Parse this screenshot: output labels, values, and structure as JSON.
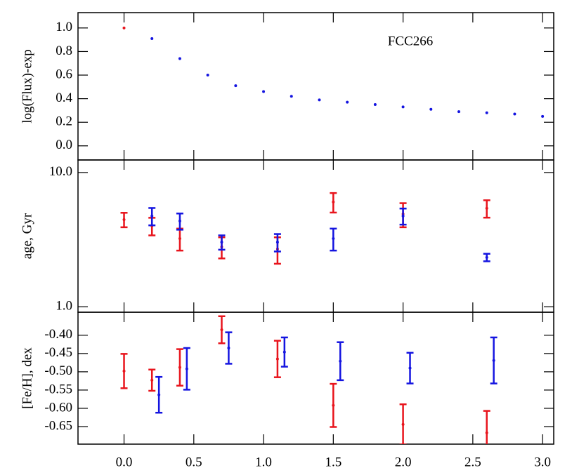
{
  "chart_data": [
    {
      "type": "scatter",
      "ylabel": "log(Flux)-exp",
      "annotation": "FCC266",
      "xlim": [
        -0.33,
        3.08
      ],
      "ylim": [
        -0.12,
        1.13
      ],
      "yticks": [
        {
          "value": 0,
          "label": "0.0"
        },
        {
          "value": 0.2,
          "label": "0.2"
        },
        {
          "value": 0.4,
          "label": "0.4"
        },
        {
          "value": 0.6,
          "label": "0.6"
        },
        {
          "value": 0.8,
          "label": "0.8"
        },
        {
          "value": 1,
          "label": "1.0"
        }
      ],
      "series": [
        {
          "color": "#e8141c",
          "x": [
            0
          ],
          "values": [
            1.0
          ]
        },
        {
          "color": "#1414e0",
          "x": [
            0.2,
            0.4,
            0.6,
            0.8,
            1.0,
            1.2,
            1.4,
            1.6,
            1.8,
            2.0,
            2.2,
            2.4,
            2.6,
            2.8,
            3.0
          ],
          "values": [
            0.91,
            0.74,
            0.6,
            0.51,
            0.46,
            0.42,
            0.39,
            0.37,
            0.35,
            0.33,
            0.31,
            0.29,
            0.28,
            0.27,
            0.25
          ]
        }
      ]
    },
    {
      "type": "errorbar",
      "ylabel": "age, Gyr",
      "log_y": true,
      "xlim": [
        -0.33,
        3.08
      ],
      "ylim": [
        0.91,
        12.4
      ],
      "yticks": [
        {
          "value": 1,
          "label": "1.0"
        },
        {
          "value": 10,
          "label": "10.0"
        }
      ],
      "series": [
        {
          "color": "#e8141c",
          "x": [
            0,
            0.2,
            0.4,
            0.7,
            1.1,
            1.5,
            2.0,
            2.6
          ],
          "values": [
            4.46,
            4.0,
            3.22,
            2.79,
            2.69,
            6.03,
            4.91,
            5.41
          ],
          "errors": [
            0.55,
            0.6,
            0.6,
            0.5,
            0.6,
            1.0,
            1.0,
            0.8
          ]
        },
        {
          "color": "#1414e0",
          "x": [
            0.2,
            0.4,
            0.7,
            1.1,
            1.5,
            2.0,
            2.6
          ],
          "values": [
            4.74,
            4.35,
            3.03,
            3.03,
            3.22,
            4.74,
            2.33
          ],
          "errors": [
            0.7,
            0.6,
            0.37,
            0.45,
            0.6,
            0.65,
            0.15
          ]
        }
      ]
    },
    {
      "type": "errorbar",
      "ylabel": "[Fe/H], dex",
      "xlim": [
        -0.33,
        3.08
      ],
      "ylim": [
        -0.698,
        -0.337
      ],
      "xticks": [
        {
          "value": 0,
          "label": "0.0"
        },
        0.5,
        {
          "value": 1,
          "label": "1.0"
        },
        1.5,
        {
          "value": 2,
          "label": "2.0"
        },
        2.5,
        {
          "value": 3,
          "label": "3.0"
        }
      ],
      "yticks": [
        {
          "value": -0.4,
          "label": "-0.40"
        },
        -0.45,
        {
          "value": -0.5,
          "label": "-0.50"
        },
        -0.55,
        {
          "value": -0.6,
          "label": "-0.60"
        },
        -0.65
      ],
      "series": [
        {
          "color": "#e8141c",
          "x": [
            0,
            0.2,
            0.4,
            0.7,
            1.1,
            1.5,
            2.0,
            2.6
          ],
          "values": [
            -0.498,
            -0.523,
            -0.488,
            -0.385,
            -0.465,
            -0.592,
            -0.644,
            -0.667
          ],
          "errors": [
            0.047,
            0.029,
            0.05,
            0.037,
            0.05,
            0.059,
            0.055,
            0.06
          ]
        },
        {
          "color": "#1414e0",
          "x": [
            0.25,
            0.45,
            0.75,
            1.15,
            1.55,
            2.05,
            2.65
          ],
          "values": [
            -0.563,
            -0.492,
            -0.435,
            -0.446,
            -0.471,
            -0.49,
            -0.469
          ],
          "errors": [
            0.049,
            0.057,
            0.043,
            0.04,
            0.052,
            0.042,
            0.063
          ]
        }
      ]
    }
  ]
}
